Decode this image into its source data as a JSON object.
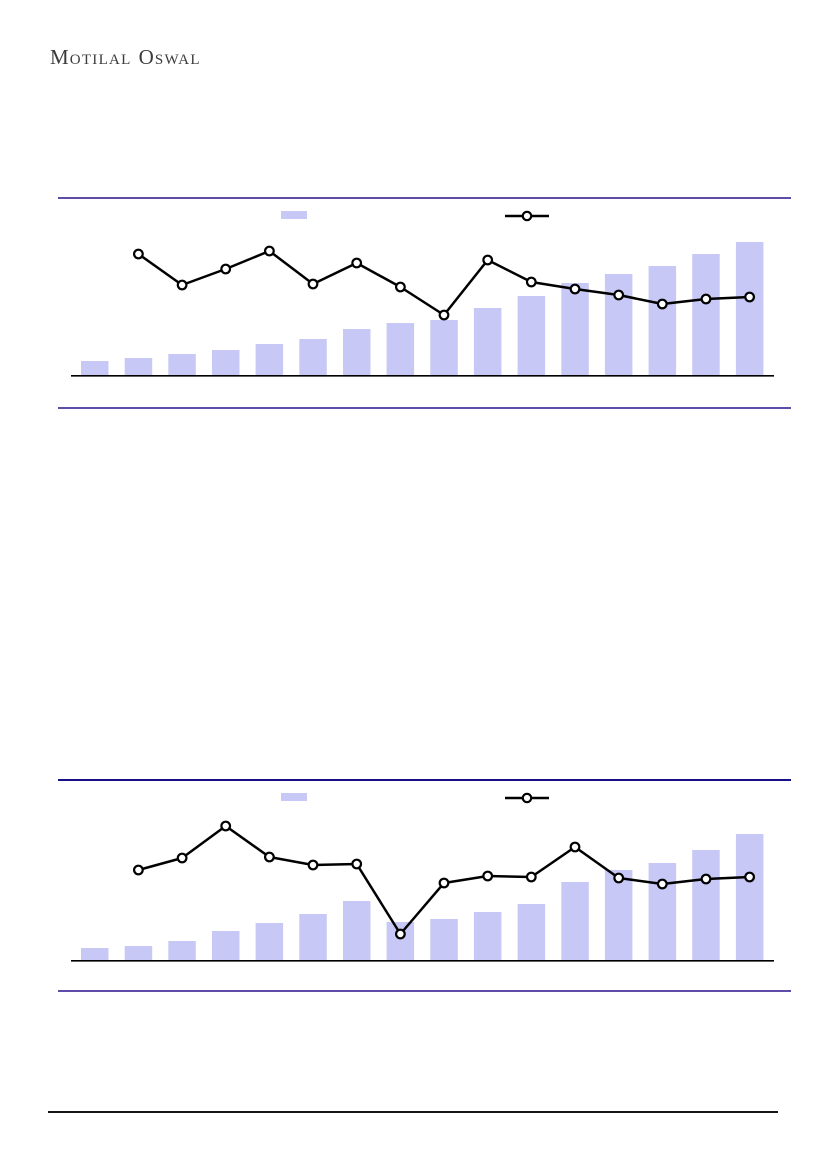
{
  "brand": {
    "name": "Motilal Oswal",
    "logo_word1_initial": "M",
    "logo_word1_rest": "OTILAL",
    "logo_word2_initial": "O",
    "logo_word2_rest": "SWAL"
  },
  "colors": {
    "bar_fill": "#c8c8f6",
    "line_stroke": "#000000",
    "marker_fill": "#ffffff",
    "axis": "#000000",
    "rule_purple": "#5e4ca8",
    "rule_navy": "#190f87",
    "footer_rule": "#151515",
    "logo_text": "#3b3b3b"
  },
  "chart_data": [
    {
      "id": "top-chart",
      "type": "combo-bar-line",
      "title": "",
      "xlabel": "",
      "ylabel": "",
      "axis_tick_labels_visible": false,
      "legend": {
        "bar_label": "",
        "line_label": "",
        "position": "top-center"
      },
      "n_periods": 16,
      "bar_series": {
        "name": "bar-series",
        "unit": "px-height-above-baseline",
        "values": [
          14,
          17,
          21,
          25,
          31,
          36,
          46,
          52,
          55,
          67,
          79,
          92,
          101,
          109,
          121,
          133
        ]
      },
      "line_series": {
        "name": "line-series",
        "unit": "px-above-baseline",
        "start_period_index": 1,
        "values": [
          121,
          90,
          106,
          124,
          91,
          112,
          88,
          60,
          115,
          93,
          86,
          80,
          71,
          76,
          78
        ]
      }
    },
    {
      "id": "bottom-chart",
      "type": "combo-bar-line",
      "title": "",
      "xlabel": "",
      "ylabel": "",
      "axis_tick_labels_visible": false,
      "legend": {
        "bar_label": "",
        "line_label": "",
        "position": "top-center"
      },
      "n_periods": 16,
      "bar_series": {
        "name": "bar-series",
        "unit": "px-height-above-baseline",
        "values": [
          12,
          14,
          19,
          29,
          37,
          46,
          59,
          38,
          41,
          48,
          56,
          78,
          90,
          97,
          110,
          126
        ]
      },
      "line_series": {
        "name": "line-series",
        "unit": "px-above-baseline",
        "start_period_index": 1,
        "values": [
          90,
          102,
          134,
          103,
          95,
          96,
          26,
          77,
          84,
          83,
          113,
          82,
          76,
          81,
          83
        ]
      }
    }
  ]
}
